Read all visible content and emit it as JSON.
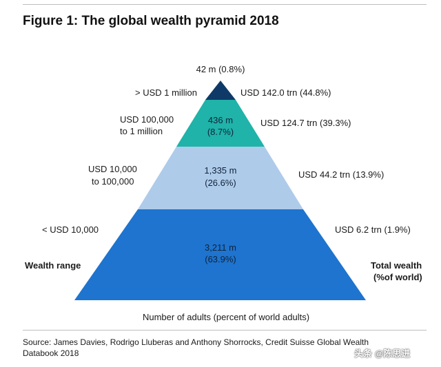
{
  "title": "Figure 1: The global wealth pyramid 2018",
  "colors": {
    "tier_top": "#0f3a68",
    "tier_2": "#1fb3a9",
    "tier_3": "#aecbea",
    "tier_4": "#1e74cf"
  },
  "tiers": [
    {
      "wealth_range": "> USD 1 million",
      "adults": "42 m (0.8%)",
      "total_wealth": "USD 142.0 trn (44.8%)"
    },
    {
      "wealth_range_line1": "USD 100,000",
      "wealth_range_line2": "to 1 million",
      "adults_line1": "436 m",
      "adults_line2": "(8.7%)",
      "total_wealth": "USD 124.7 trn (39.3%)"
    },
    {
      "wealth_range_line1": "USD 10,000",
      "wealth_range_line2": "to 100,000",
      "adults_line1": "1,335 m",
      "adults_line2": "(26.6%)",
      "total_wealth": "USD 44.2 trn (13.9%)"
    },
    {
      "wealth_range": "< USD 10,000",
      "adults_line1": "3,211 m",
      "adults_line2": "(63.9%)",
      "total_wealth": "USD 6.2 trn (1.9%)"
    }
  ],
  "left_axis_label": "Wealth range",
  "right_axis_label_line1": "Total wealth",
  "right_axis_label_line2": "(%of world)",
  "bottom_label": "Number of adults (percent of world adults)",
  "source_line1": "Source: James Davies, Rodrigo Lluberas and Anthony Shorrocks, Credit Suisse Global Wealth",
  "source_line2": "Databook 2018",
  "watermark": "头条 @陈思进"
}
